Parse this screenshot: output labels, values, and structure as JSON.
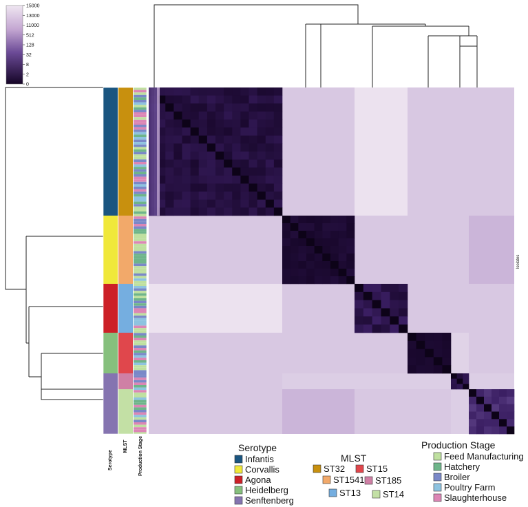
{
  "chart_data": {
    "type": "heatmap",
    "row_label": "Isolates",
    "colorbar": {
      "ticks": [
        "15000",
        "13000",
        "11000",
        "512",
        "128",
        "32",
        "8",
        "2",
        "0"
      ]
    },
    "annotation_tracks": [
      "Serotype",
      "MLST",
      "Production Stage"
    ],
    "clusters": [
      {
        "serotype": "Infantis",
        "mlst": "ST32",
        "size": 52
      },
      {
        "serotype": "Corvallis",
        "mlst": "ST1541",
        "size": 28
      },
      {
        "serotype": "Agona",
        "mlst": "ST13",
        "size": 20
      },
      {
        "serotype": "Heidelberg",
        "mlst": "ST15",
        "size": 17
      },
      {
        "serotype": "Senftenberg",
        "mlst": "ST185",
        "size": 7
      },
      {
        "serotype": "Senftenberg",
        "mlst": "ST14",
        "size": 16
      }
    ],
    "snp_distance_blocks": [
      [
        10,
        12000,
        15000,
        12000,
        12000,
        12000
      ],
      [
        12000,
        5,
        12000,
        12000,
        12000,
        11000
      ],
      [
        15000,
        12000,
        15,
        12000,
        12000,
        12000
      ],
      [
        12000,
        12000,
        12000,
        3,
        13000,
        12000
      ],
      [
        12000,
        12500,
        12500,
        12500,
        15,
        12500
      ],
      [
        12000,
        11000,
        12000,
        12000,
        12500,
        60
      ]
    ],
    "legends": {
      "serotype": {
        "title": "Serotype",
        "items": [
          {
            "label": "Infantis",
            "color": "#1a5580"
          },
          {
            "label": "Corvallis",
            "color": "#f0e83a"
          },
          {
            "label": "Agona",
            "color": "#cc2027"
          },
          {
            "label": "Heidelberg",
            "color": "#86c07d"
          },
          {
            "label": "Senftenberg",
            "color": "#8574b0"
          }
        ]
      },
      "mlst": {
        "title": "MLST",
        "items": [
          {
            "label": "ST32",
            "color": "#c8900e"
          },
          {
            "label": "ST15",
            "color": "#e0474c"
          },
          {
            "label": "ST1541",
            "color": "#f2a96a"
          },
          {
            "label": "ST185",
            "color": "#cf80a5"
          },
          {
            "label": "ST13",
            "color": "#75aee0"
          },
          {
            "label": "ST14",
            "color": "#c3e0a5"
          }
        ]
      },
      "stage": {
        "title": "Production Stage",
        "items": [
          {
            "label": "Feed Manufacturing",
            "color": "#bfe0a0"
          },
          {
            "label": "Hatchery",
            "color": "#6eb58a"
          },
          {
            "label": "Broiler",
            "color": "#7a88c8"
          },
          {
            "label": "Poultry Farm",
            "color": "#8ec3e0"
          },
          {
            "label": "Slaughterhouse",
            "color": "#dc86b5"
          }
        ]
      }
    }
  }
}
